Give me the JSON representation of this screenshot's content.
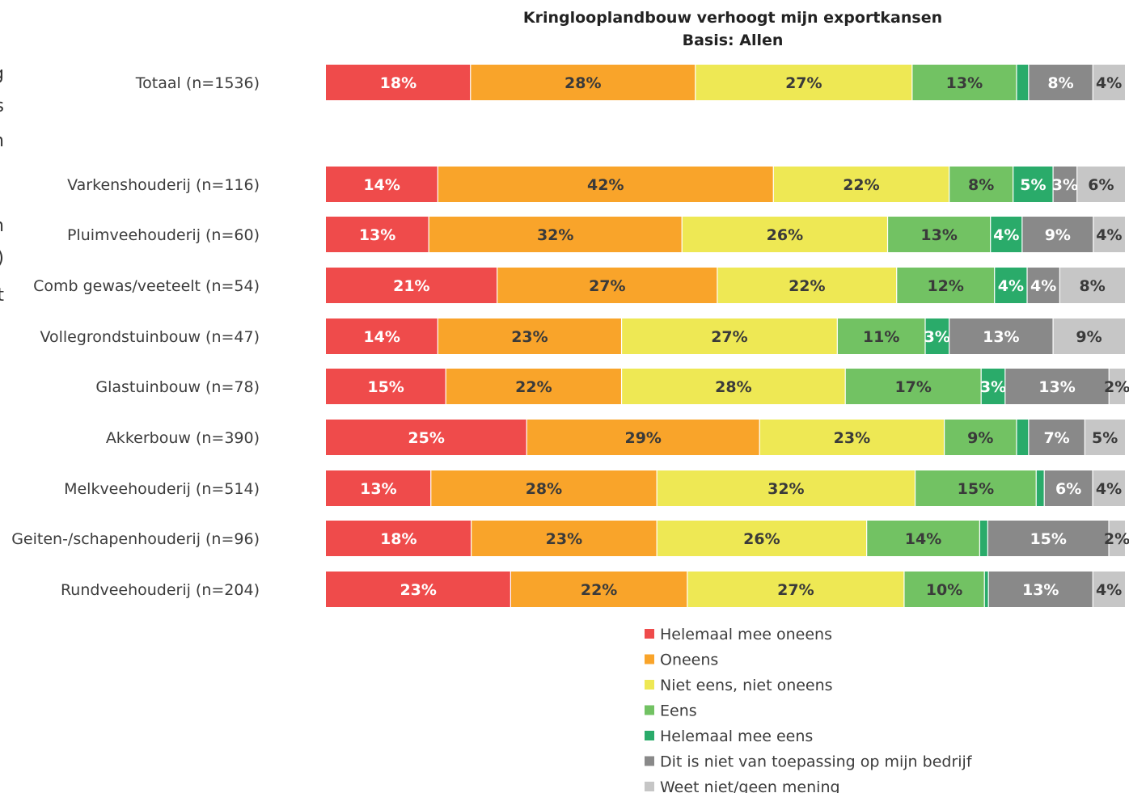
{
  "chart_data": {
    "type": "bar",
    "orientation": "horizontal",
    "stacked": true,
    "title": "Kringlooplandbouw verhoogt mijn exportkansen",
    "subtitle": "Basis: Allen",
    "categories": [
      "Totaal (n=1536)",
      "Varkenshouderij (n=116)",
      "Pluimveehouderij (n=60)",
      "Comb gewas/veeteelt (n=54)",
      "Vollegrondstuinbouw (n=47)",
      "Glastuinbouw (n=78)",
      "Akkerbouw (n=390)",
      "Melkveehouderij (n=514)",
      "Geiten-/schapenhouderij (n=96)",
      "Rundveehouderij (n=204)"
    ],
    "series": [
      {
        "name": "Helemaal mee oneens",
        "color": "#ef4b4b",
        "text_color": "#ffffff",
        "values": [
          18,
          14,
          13,
          21,
          14,
          15,
          25,
          13,
          18,
          23
        ],
        "labels": [
          "18%",
          "14%",
          "13%",
          "21%",
          "14%",
          "15%",
          "25%",
          "13%",
          "18%",
          "23%"
        ]
      },
      {
        "name": "Oneens",
        "color": "#f9a42a",
        "text_color": "#3a3a3a",
        "values": [
          28,
          42,
          32,
          27,
          23,
          22,
          29,
          28,
          23,
          22
        ],
        "labels": [
          "28%",
          "42%",
          "32%",
          "27%",
          "23%",
          "22%",
          "29%",
          "28%",
          "23%",
          "22%"
        ]
      },
      {
        "name": "Niet eens, niet oneens",
        "color": "#eee854",
        "text_color": "#3a3a3a",
        "values": [
          27,
          22,
          26,
          22,
          27,
          28,
          23,
          32,
          26,
          27
        ],
        "labels": [
          "27%",
          "22%",
          "26%",
          "22%",
          "27%",
          "28%",
          "23%",
          "32%",
          "26%",
          "27%"
        ]
      },
      {
        "name": "Eens",
        "color": "#72c263",
        "text_color": "#3a3a3a",
        "values": [
          13,
          8,
          13,
          12,
          11,
          17,
          9,
          15,
          14,
          10
        ],
        "labels": [
          "13%",
          "8%",
          "13%",
          "12%",
          "11%",
          "17%",
          "9%",
          "15%",
          "14%",
          "10%"
        ]
      },
      {
        "name": "Helemaal mee eens",
        "color": "#2aab6a",
        "text_color": "#ffffff",
        "values": [
          1.5,
          5,
          4,
          4,
          3,
          3,
          1.5,
          1,
          1,
          0.5
        ],
        "labels": [
          "",
          "5%",
          "4%",
          "4%",
          "3%",
          "3%",
          "",
          "",
          "",
          ""
        ]
      },
      {
        "name": "Dit is niet van toepassing op mijn bedrijf",
        "color": "#898989",
        "text_color": "#ffffff",
        "values": [
          8,
          3,
          9,
          4,
          13,
          13,
          7,
          6,
          15,
          13
        ],
        "labels": [
          "8%",
          "3%",
          "9%",
          "4%",
          "13%",
          "13%",
          "7%",
          "6%",
          "15%",
          "13%"
        ]
      },
      {
        "name": "Weet niet/geen mening",
        "color": "#c6c6c6",
        "text_color": "#3a3a3a",
        "values": [
          4,
          6,
          4,
          8,
          9,
          2,
          5,
          4,
          2,
          4
        ],
        "labels": [
          "4%",
          "6%",
          "4%",
          "8%",
          "9%",
          "2%",
          "5%",
          "4%",
          "2%",
          "4%"
        ]
      }
    ],
    "xlim": [
      0,
      100
    ],
    "legend_position": "bottom",
    "grid": false
  },
  "edge_fragments": [
    "g",
    "s",
    "n",
    "n",
    ")",
    "t"
  ]
}
